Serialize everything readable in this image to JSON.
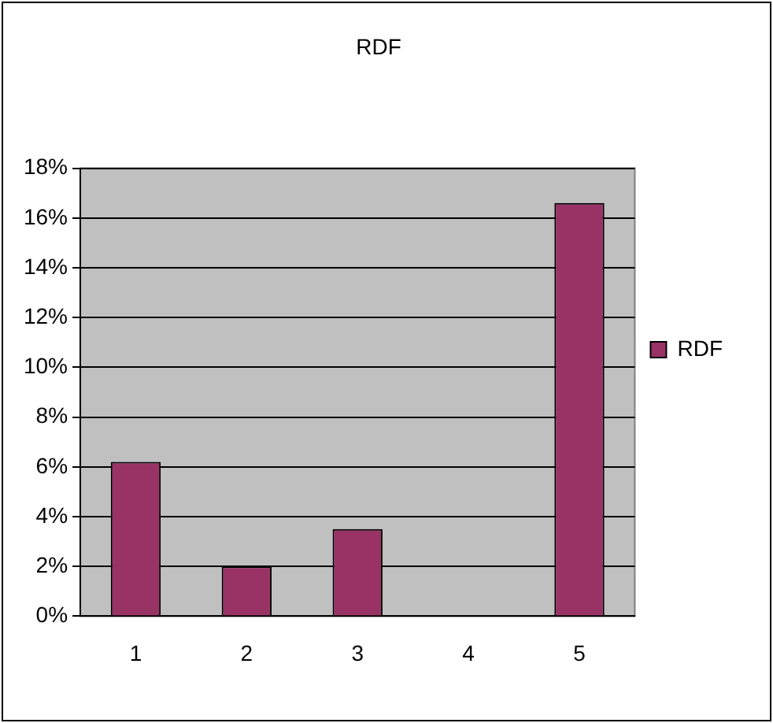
{
  "chart_data": {
    "type": "bar",
    "title": "RDF",
    "categories": [
      "1",
      "2",
      "3",
      "4",
      "5"
    ],
    "series": [
      {
        "name": "RDF",
        "color": "#993366",
        "values": [
          6.2,
          2.0,
          3.5,
          0,
          16.6
        ]
      }
    ],
    "ylim": [
      0,
      18
    ],
    "yticks": [
      {
        "value": 0,
        "label": "0%"
      },
      {
        "value": 2,
        "label": "2%"
      },
      {
        "value": 4,
        "label": "4%"
      },
      {
        "value": 6,
        "label": "6%"
      },
      {
        "value": 8,
        "label": "8%"
      },
      {
        "value": 10,
        "label": "10%"
      },
      {
        "value": 12,
        "label": "12%"
      },
      {
        "value": 14,
        "label": "14%"
      },
      {
        "value": 16,
        "label": "16%"
      },
      {
        "value": 18,
        "label": "18%"
      }
    ],
    "grid": "y",
    "legend": "right"
  }
}
